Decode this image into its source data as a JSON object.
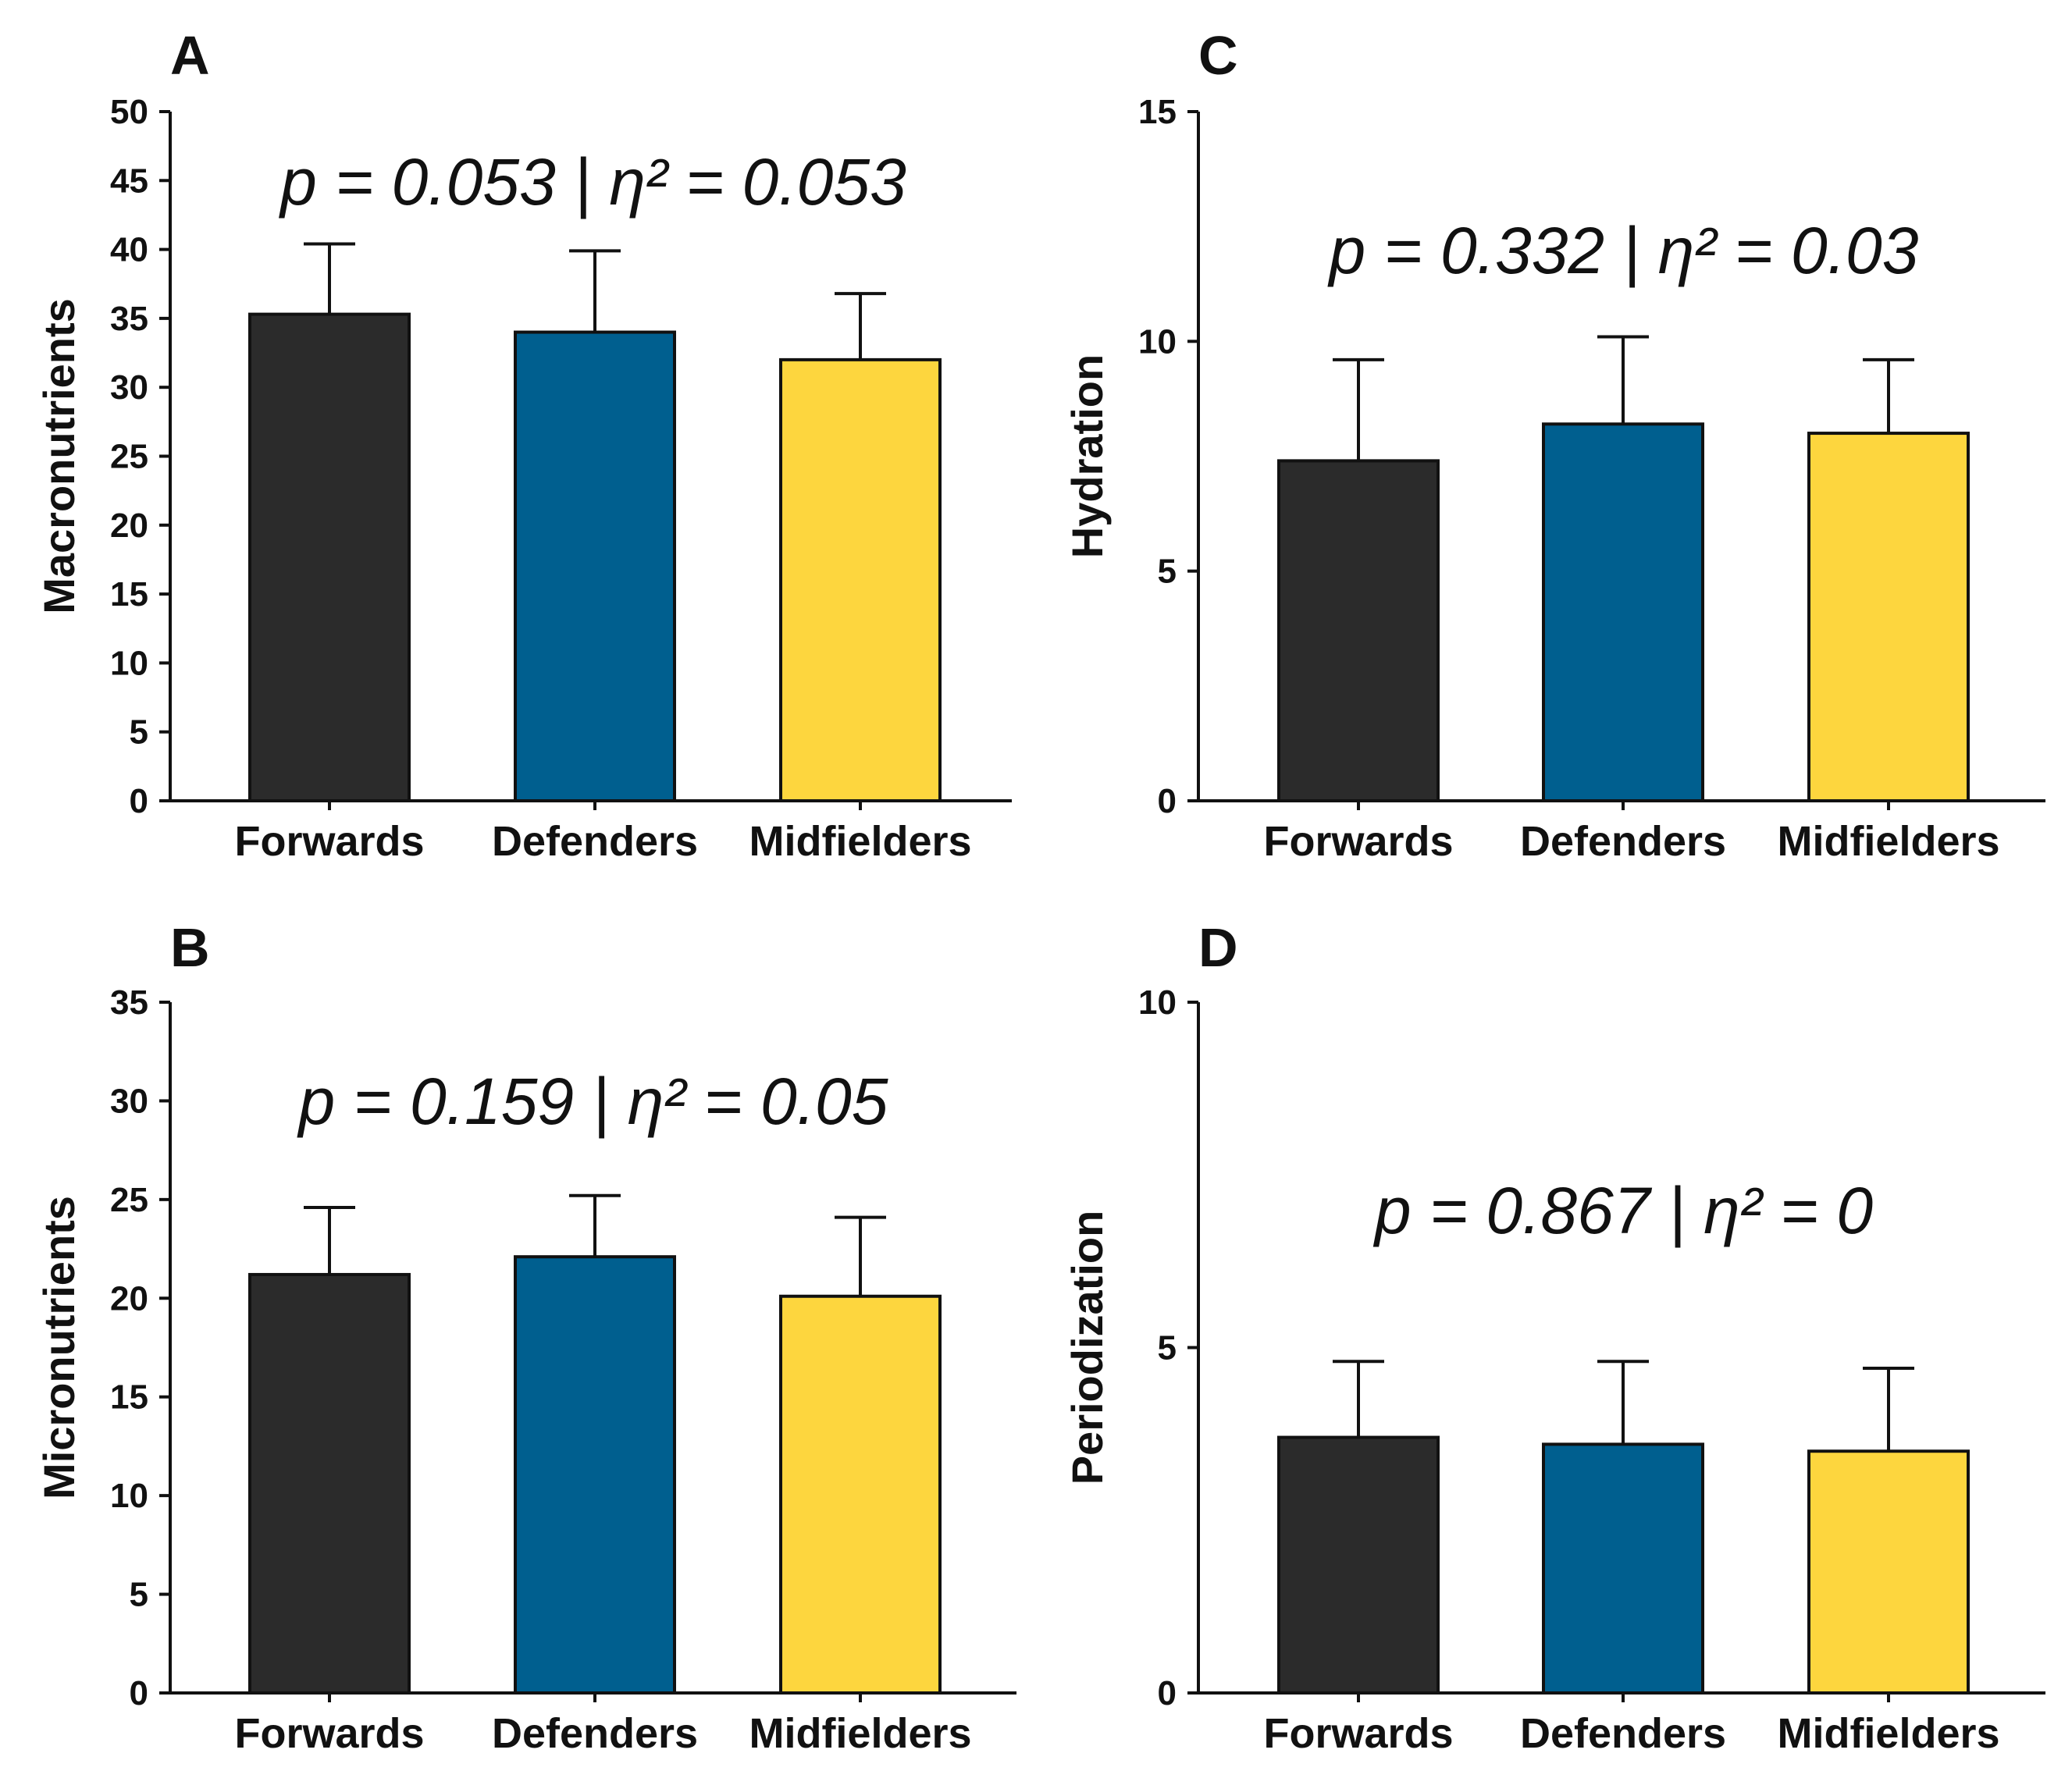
{
  "chart_data": [
    {
      "type": "bar",
      "panel": "A",
      "ylabel": "Macronutrients",
      "annotation": "p = 0.053 | η² = 0.053",
      "categories": [
        "Forwards",
        "Defenders",
        "Midfielders"
      ],
      "values": [
        35.3,
        34.0,
        32.0
      ],
      "error_upper": [
        40.4,
        39.9,
        36.8
      ],
      "ylim": [
        0,
        50
      ],
      "yticks": [
        0,
        5,
        10,
        15,
        20,
        25,
        30,
        35,
        40,
        45,
        50
      ],
      "colors": [
        "#2b2b2b",
        "#005f8f",
        "#fdd63e"
      ]
    },
    {
      "type": "bar",
      "panel": "B",
      "ylabel": "Micronutrients",
      "annotation": "p = 0.159 | η² = 0.05",
      "categories": [
        "Forwards",
        "Defenders",
        "Midfielders"
      ],
      "values": [
        21.2,
        22.1,
        20.1
      ],
      "error_upper": [
        24.6,
        25.2,
        24.1
      ],
      "ylim": [
        0,
        35
      ],
      "yticks": [
        0,
        5,
        10,
        15,
        20,
        25,
        30,
        35
      ],
      "colors": [
        "#2b2b2b",
        "#005f8f",
        "#fdd63e"
      ]
    },
    {
      "type": "bar",
      "panel": "C",
      "ylabel": "Hydration",
      "annotation": "p = 0.332 | η² = 0.03",
      "categories": [
        "Forwards",
        "Defenders",
        "Midfielders"
      ],
      "values": [
        7.4,
        8.2,
        8.0
      ],
      "error_upper": [
        9.6,
        10.1,
        9.6
      ],
      "ylim": [
        0,
        15
      ],
      "yticks": [
        0,
        5,
        10,
        15
      ],
      "colors": [
        "#2b2b2b",
        "#005f8f",
        "#fdd63e"
      ]
    },
    {
      "type": "bar",
      "panel": "D",
      "ylabel": "Periodization",
      "annotation": "p = 0.867 | η² = 0",
      "categories": [
        "Forwards",
        "Defenders",
        "Midfielders"
      ],
      "values": [
        3.7,
        3.6,
        3.5
      ],
      "error_upper": [
        4.8,
        4.8,
        4.7
      ],
      "ylim": [
        0,
        10
      ],
      "yticks": [
        0,
        5,
        10
      ],
      "colors": [
        "#2b2b2b",
        "#005f8f",
        "#fdd63e"
      ]
    }
  ]
}
